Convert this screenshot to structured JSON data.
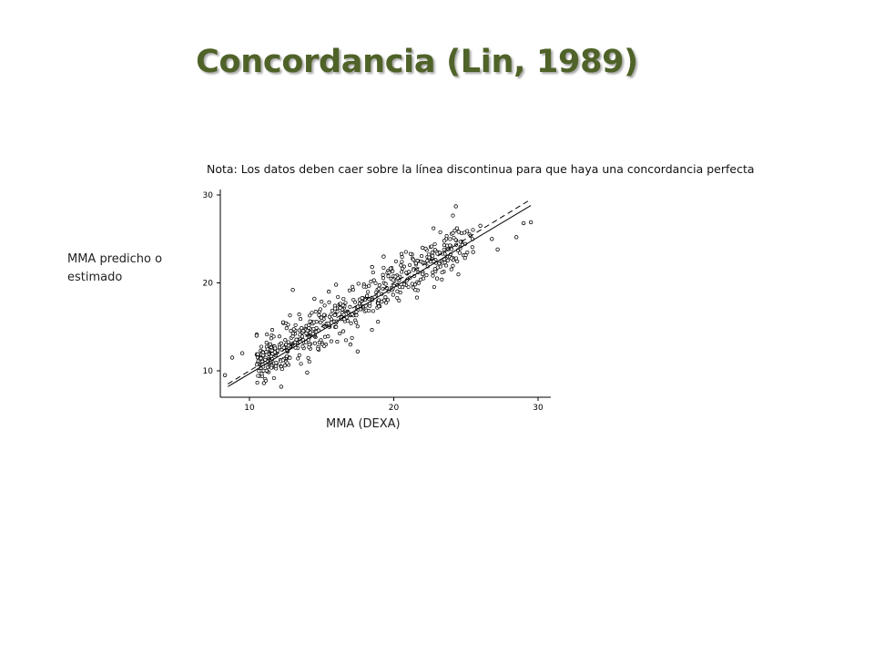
{
  "title": "Concordancia (Lin, 1989)",
  "note": "Nota: Los datos deben caer sobre la línea discontinua para que haya una concordancia perfecta",
  "chart_data": {
    "type": "scatter",
    "xlabel": "MMA (DEXA)",
    "ylabel": "MMA predicho o estimado",
    "xlim": [
      8,
      30.5
    ],
    "ylim": [
      7,
      31
    ],
    "xticks": [
      10,
      20,
      30
    ],
    "yticks": [
      10,
      20,
      30
    ],
    "grid": false,
    "legend": "none",
    "lines": [
      {
        "name": "concordancia perfecta",
        "style": "dashed",
        "x": [
          8.5,
          29.5
        ],
        "y": [
          8.5,
          29.5
        ]
      },
      {
        "name": "ajuste",
        "style": "solid",
        "x": [
          8.5,
          29.5
        ],
        "y": [
          8.2,
          28.8
        ]
      }
    ],
    "points": [
      {
        "x": 24.3,
        "y": 28.7
      },
      {
        "x": 29.0,
        "y": 26.8
      },
      {
        "x": 29.5,
        "y": 26.9
      },
      {
        "x": 28.5,
        "y": 25.2
      },
      {
        "x": 26.0,
        "y": 26.5
      },
      {
        "x": 24.5,
        "y": 25.8
      },
      {
        "x": 22.0,
        "y": 24.0
      },
      {
        "x": 19.3,
        "y": 23.0
      },
      {
        "x": 13.0,
        "y": 19.2
      },
      {
        "x": 14.5,
        "y": 18.2
      },
      {
        "x": 15.5,
        "y": 19.0
      },
      {
        "x": 17.0,
        "y": 13.0
      },
      {
        "x": 17.5,
        "y": 12.2
      },
      {
        "x": 14.0,
        "y": 9.8
      },
      {
        "x": 12.2,
        "y": 8.2
      },
      {
        "x": 11.0,
        "y": 8.6
      },
      {
        "x": 8.8,
        "y": 11.5
      },
      {
        "x": 9.5,
        "y": 12.0
      },
      {
        "x": 8.3,
        "y": 9.5
      },
      {
        "x": 10.5,
        "y": 14.0
      },
      {
        "x": 22.0,
        "y": 21.0
      },
      {
        "x": 25.5,
        "y": 23.5
      },
      {
        "x": 26.8,
        "y": 25.0
      },
      {
        "x": 27.2,
        "y": 23.8
      },
      {
        "x": 23.5,
        "y": 24.8
      },
      {
        "x": 20.5,
        "y": 22.0
      },
      {
        "x": 18.5,
        "y": 21.8
      },
      {
        "x": 16.0,
        "y": 19.8
      },
      {
        "x": 21.5,
        "y": 19.2
      },
      {
        "x": 23.0,
        "y": 20.5
      },
      {
        "x": 24.0,
        "y": 22.8
      },
      {
        "x": 16.5,
        "y": 14.5
      }
    ],
    "cloud": {
      "x_range": [
        10.5,
        25.5
      ],
      "slope": 0.98,
      "intercept": 0.3,
      "spread": 1.3,
      "count": 560
    }
  }
}
